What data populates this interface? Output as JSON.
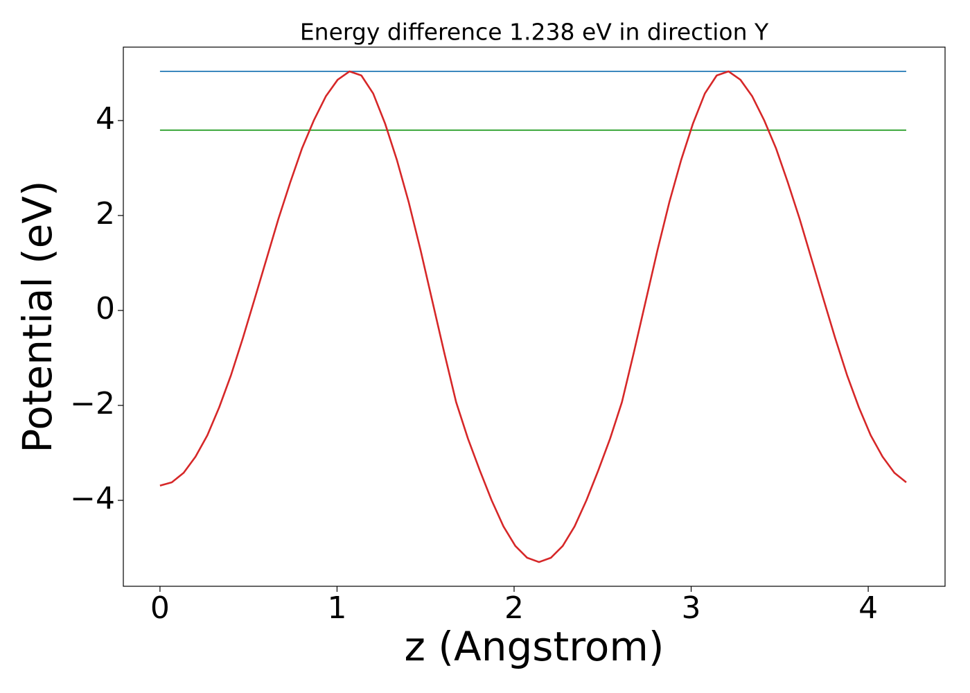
{
  "chart_data": {
    "type": "line",
    "title": "Energy difference 1.238 eV in direction Y",
    "xlabel": "z (Angstrom)",
    "ylabel": "Potential (eV)",
    "xlim": [
      -0.207,
      4.434
    ],
    "ylim": [
      -5.81,
      5.547
    ],
    "xticks": [
      0,
      1,
      2,
      3,
      4
    ],
    "yticks": [
      {
        "value": -4,
        "label": "−4"
      },
      {
        "value": -2,
        "label": "−2"
      },
      0,
      2,
      4
    ],
    "series": [
      {
        "color": "#1f77b4",
        "x": [
          0,
          4.2147
        ],
        "values": [
          5.036,
          5.036
        ]
      },
      {
        "color": "#2ca02c",
        "x": [
          0,
          4.2147
        ],
        "values": [
          3.798,
          3.798
        ]
      },
      {
        "color": "#d62728",
        "x": [
          0,
          0.0669,
          0.1338,
          0.2007,
          0.2676,
          0.3345,
          0.4014,
          0.4683,
          0.5352,
          0.6021,
          0.669,
          0.7359,
          0.8028,
          0.8697,
          0.9366,
          1.0035,
          1.0704,
          1.1373,
          1.2042,
          1.2711,
          1.338,
          1.4049,
          1.4718,
          1.5387,
          1.6056,
          1.6725,
          1.7394,
          1.8063,
          1.8732,
          1.9401,
          2.007,
          2.0739,
          2.1408,
          2.2077,
          2.2746,
          2.3415,
          2.4084,
          2.4753,
          2.5422,
          2.6091,
          2.676,
          2.7429,
          2.8098,
          2.8767,
          2.9436,
          3.0105,
          3.0774,
          3.1443,
          3.2112,
          3.2781,
          3.345,
          3.4119,
          3.4788,
          3.5457,
          3.6126,
          3.6795,
          3.7464,
          3.8133,
          3.8802,
          3.9471,
          4.014,
          4.0809,
          4.1478,
          4.2147
        ],
        "values": [
          -3.69,
          -3.62,
          -3.42,
          -3.08,
          -2.63,
          -2.04,
          -1.36,
          -0.58,
          0.25,
          1.09,
          1.93,
          2.7,
          3.42,
          4.01,
          4.51,
          4.86,
          5.036,
          4.95,
          4.57,
          3.94,
          3.17,
          2.28,
          1.27,
          0.19,
          -0.89,
          -1.93,
          -2.7,
          -3.37,
          -4.0,
          -4.55,
          -4.96,
          -5.21,
          -5.3,
          -5.21,
          -4.96,
          -4.55,
          -4.0,
          -3.37,
          -2.7,
          -1.93,
          -0.89,
          0.19,
          1.27,
          2.28,
          3.17,
          3.94,
          4.57,
          4.95,
          5.036,
          4.86,
          4.51,
          4.01,
          3.42,
          2.7,
          1.93,
          1.09,
          0.25,
          -0.58,
          -1.36,
          -2.04,
          -2.63,
          -3.08,
          -3.42,
          -3.62
        ]
      }
    ]
  }
}
